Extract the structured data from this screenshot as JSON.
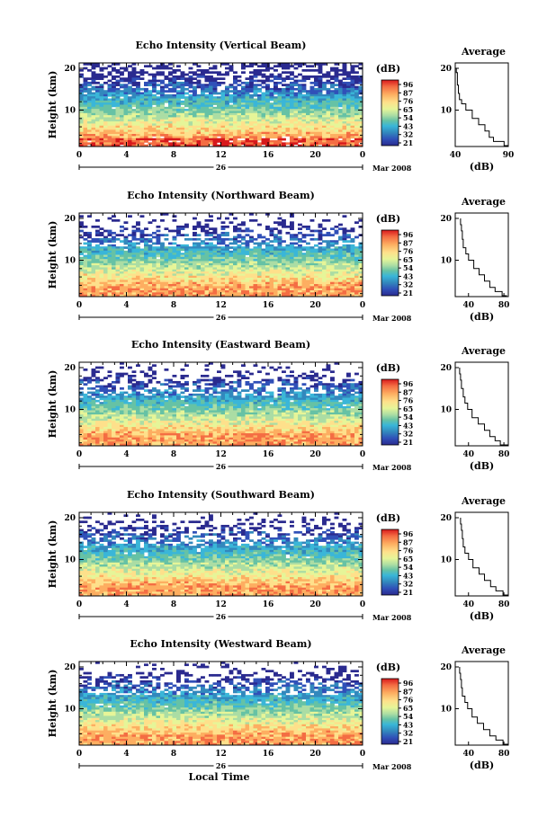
{
  "chart_data": [
    {
      "type": "heatmap",
      "title": "Echo Intensity (Vertical Beam)",
      "ylabel": "Height (km)",
      "xticks": [
        "0",
        "4",
        "8",
        "12",
        "16",
        "20",
        "0"
      ],
      "yticks": [
        "10",
        "20"
      ],
      "date_label": "26",
      "month_label": "Mar 2008",
      "colorbar": {
        "unit": "(dB)",
        "labels": [
          "96",
          "87",
          "76",
          "65",
          "54",
          "43",
          "32",
          "21"
        ]
      },
      "profile": {
        "title": "Average",
        "xticks": [
          "40",
          "90"
        ],
        "yticks": [
          "10",
          "20"
        ],
        "xlabel": "(dB)",
        "xlim": [
          40,
          90
        ],
        "points": [
          [
            90,
            1.5
          ],
          [
            86,
            2.5
          ],
          [
            76,
            3.5
          ],
          [
            72,
            5
          ],
          [
            68,
            6.5
          ],
          [
            62,
            8
          ],
          [
            56,
            10
          ],
          [
            50,
            11.5
          ],
          [
            46,
            12.5
          ],
          [
            44,
            14
          ],
          [
            43,
            16
          ],
          [
            42,
            17.5
          ],
          [
            42,
            19
          ],
          [
            41,
            20
          ]
        ]
      }
    },
    {
      "type": "heatmap",
      "title": "Echo Intensity (Northward Beam)",
      "ylabel": "Height (km)",
      "xticks": [
        "0",
        "4",
        "8",
        "12",
        "16",
        "20",
        "0"
      ],
      "yticks": [
        "10",
        "20"
      ],
      "date_label": "26",
      "month_label": "Mar 2008",
      "colorbar": {
        "unit": "(dB)",
        "labels": [
          "96",
          "87",
          "76",
          "65",
          "54",
          "43",
          "32",
          "21"
        ]
      },
      "profile": {
        "title": "Average",
        "xticks": [
          "40",
          "80"
        ],
        "yticks": [
          "10",
          "20"
        ],
        "xlabel": "(dB)",
        "xlim": [
          25,
          85
        ],
        "points": [
          [
            83,
            1.5
          ],
          [
            78,
            2.5
          ],
          [
            70,
            3.5
          ],
          [
            64,
            5
          ],
          [
            58,
            6.5
          ],
          [
            52,
            8
          ],
          [
            46,
            10
          ],
          [
            40,
            11.5
          ],
          [
            37,
            13
          ],
          [
            34,
            15
          ],
          [
            33,
            17
          ],
          [
            32,
            18.5
          ],
          [
            31,
            20
          ]
        ]
      }
    },
    {
      "type": "heatmap",
      "title": "Echo Intensity (Eastward Beam)",
      "ylabel": "Height (km)",
      "xticks": [
        "0",
        "4",
        "8",
        "12",
        "16",
        "20",
        "0"
      ],
      "yticks": [
        "10",
        "20"
      ],
      "date_label": "26",
      "month_label": "Mar 2008",
      "colorbar": {
        "unit": "(dB)",
        "labels": [
          "96",
          "87",
          "76",
          "65",
          "54",
          "43",
          "32",
          "21"
        ]
      },
      "profile": {
        "title": "Average",
        "xticks": [
          "40",
          "80"
        ],
        "yticks": [
          "10",
          "20"
        ],
        "xlabel": "(dB)",
        "xlim": [
          25,
          85
        ],
        "points": [
          [
            84,
            1.5
          ],
          [
            76,
            2.5
          ],
          [
            70,
            3.5
          ],
          [
            64,
            5
          ],
          [
            58,
            6.5
          ],
          [
            51,
            8
          ],
          [
            44,
            10
          ],
          [
            39,
            11.5
          ],
          [
            36,
            13
          ],
          [
            34,
            15
          ],
          [
            32,
            17
          ],
          [
            31,
            18.5
          ],
          [
            30,
            20
          ]
        ]
      }
    },
    {
      "type": "heatmap",
      "title": "Echo Intensity (Southward Beam)",
      "ylabel": "Height (km)",
      "xticks": [
        "0",
        "4",
        "8",
        "12",
        "16",
        "20",
        "0"
      ],
      "yticks": [
        "10",
        "20"
      ],
      "date_label": "26",
      "month_label": "Mar 2008",
      "colorbar": {
        "unit": "(dB)",
        "labels": [
          "96",
          "87",
          "76",
          "65",
          "54",
          "43",
          "32",
          "21"
        ]
      },
      "profile": {
        "title": "Average",
        "xticks": [
          "40",
          "80"
        ],
        "yticks": [
          "10",
          "20"
        ],
        "xlabel": "(dB)",
        "xlim": [
          25,
          85
        ],
        "points": [
          [
            84,
            1.5
          ],
          [
            79,
            2.5
          ],
          [
            71,
            3.5
          ],
          [
            65,
            5
          ],
          [
            58,
            6.5
          ],
          [
            52,
            8
          ],
          [
            45,
            10
          ],
          [
            40,
            11.5
          ],
          [
            36,
            13
          ],
          [
            34,
            15
          ],
          [
            33,
            17
          ],
          [
            32,
            18.5
          ],
          [
            31,
            20
          ]
        ]
      }
    },
    {
      "type": "heatmap",
      "title": "Echo Intensity (Westward Beam)",
      "ylabel": "Height (km)",
      "xticks": [
        "0",
        "4",
        "8",
        "12",
        "16",
        "20",
        "0"
      ],
      "yticks": [
        "10",
        "20"
      ],
      "date_label": "26",
      "month_label": "Mar 2008",
      "xlabel": "Local Time",
      "colorbar": {
        "unit": "(dB)",
        "labels": [
          "96",
          "87",
          "76",
          "65",
          "54",
          "43",
          "32",
          "21"
        ]
      },
      "profile": {
        "title": "Average",
        "xticks": [
          "40",
          "80"
        ],
        "yticks": [
          "10",
          "20"
        ],
        "xlabel": "(dB)",
        "xlim": [
          25,
          85
        ],
        "points": [
          [
            84,
            1.5
          ],
          [
            79,
            2.5
          ],
          [
            71,
            3.5
          ],
          [
            64,
            5
          ],
          [
            57,
            6.5
          ],
          [
            50,
            8
          ],
          [
            44,
            10
          ],
          [
            39,
            11.5
          ],
          [
            36,
            13
          ],
          [
            33,
            15
          ],
          [
            32,
            17
          ],
          [
            31,
            18.5
          ],
          [
            30,
            20
          ]
        ]
      }
    }
  ],
  "colors": {
    "colorbar_stops": [
      "#d7191c",
      "#f46d43",
      "#fdae61",
      "#fee08b",
      "#e6f598",
      "#abdda4",
      "#66c2a5",
      "#3ab6d8",
      "#3288bd",
      "#3050b8",
      "#2a2a8f"
    ]
  }
}
